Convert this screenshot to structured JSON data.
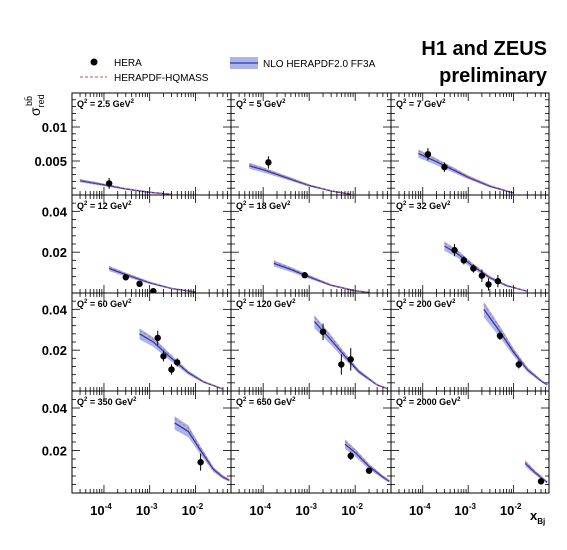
{
  "header": {
    "experiment_line1": "H1 and ZEUS",
    "experiment_line2": "preliminary"
  },
  "legend": {
    "hera": "HERA",
    "hqmass": "HERAPDF-HQMASS",
    "nlo": "NLO HERAPDF2.0 FF3A"
  },
  "y_title": {
    "main": "σ",
    "sup": "bb̄",
    "sub": "red"
  },
  "x_title": {
    "main": "x",
    "sub": "Bj"
  },
  "colors": {
    "data": "#000000",
    "band_fill": "#aab4e6",
    "band_line": "#3535b5",
    "hqmass": "#c87878"
  },
  "chart_data": {
    "type": "scatter",
    "x_scale": "log",
    "xlim": [
      2e-05,
      0.06
    ],
    "x_tick_labels": [
      "10",
      "10",
      "10"
    ],
    "x_tick_exps": [
      "-4",
      "-3",
      "-2"
    ],
    "x_tick_values": [
      0.0001,
      0.001,
      0.01
    ],
    "rows": [
      {
        "ylim": [
          0,
          0.015
        ],
        "y_ticks": [
          0.005,
          0.01
        ],
        "y_tick_labels": [
          "0.005",
          "0.01"
        ]
      },
      {
        "ylim": [
          0,
          0.048
        ],
        "y_ticks": [
          0.02,
          0.04
        ],
        "y_tick_labels": [
          "0.02",
          "0.04"
        ]
      },
      {
        "ylim": [
          0,
          0.048
        ],
        "y_ticks": [
          0.02,
          0.04
        ],
        "y_tick_labels": [
          "0.02",
          "0.04"
        ]
      },
      {
        "ylim": [
          0,
          0.048
        ],
        "y_ticks": [
          0.02,
          0.04
        ],
        "y_tick_labels": [
          "0.02",
          "0.04"
        ]
      }
    ],
    "panels": [
      {
        "q2": "2.5",
        "row": 0,
        "col": 0,
        "points": [
          {
            "x": 0.00013,
            "y": 0.0017,
            "err": 0.0008
          }
        ],
        "curve": [
          [
            3e-05,
            0.0021
          ],
          [
            0.0001,
            0.0015
          ],
          [
            0.0003,
            0.0009
          ],
          [
            0.001,
            0.0004
          ],
          [
            0.003,
            0.0001
          ]
        ]
      },
      {
        "q2": "5",
        "row": 0,
        "col": 1,
        "points": [
          {
            "x": 0.00013,
            "y": 0.0048,
            "err": 0.0009
          }
        ],
        "curve": [
          [
            5e-05,
            0.0043
          ],
          [
            0.0001,
            0.0037
          ],
          [
            0.0003,
            0.0026
          ],
          [
            0.001,
            0.0014
          ],
          [
            0.003,
            0.0006
          ],
          [
            0.008,
            0.0001
          ]
        ]
      },
      {
        "q2": "7",
        "row": 0,
        "col": 2,
        "points": [
          {
            "x": 0.00013,
            "y": 0.006,
            "err": 0.0009
          },
          {
            "x": 0.0003,
            "y": 0.0041,
            "err": 0.0007
          }
        ],
        "curve": [
          [
            8e-05,
            0.0061
          ],
          [
            0.0002,
            0.0049
          ],
          [
            0.0005,
            0.0036
          ],
          [
            0.001,
            0.0026
          ],
          [
            0.003,
            0.0013
          ],
          [
            0.01,
            0.0003
          ]
        ]
      },
      {
        "q2": "12",
        "row": 1,
        "col": 0,
        "points": [
          {
            "x": 0.0003,
            "y": 0.0077,
            "err": 0.0015
          },
          {
            "x": 0.0006,
            "y": 0.0045,
            "err": 0.0013
          },
          {
            "x": 0.0012,
            "y": 0.0009,
            "err": 0.0012
          }
        ],
        "curve": [
          [
            0.00013,
            0.012
          ],
          [
            0.0003,
            0.009
          ],
          [
            0.001,
            0.005
          ],
          [
            0.003,
            0.0022
          ],
          [
            0.01,
            0.0005
          ]
        ]
      },
      {
        "q2": "18",
        "row": 1,
        "col": 1,
        "points": [
          {
            "x": 0.0008,
            "y": 0.0087,
            "err": 0.0013
          }
        ],
        "curve": [
          [
            0.00017,
            0.0145
          ],
          [
            0.0004,
            0.0115
          ],
          [
            0.001,
            0.0079
          ],
          [
            0.003,
            0.0038
          ],
          [
            0.01,
            0.0011
          ],
          [
            0.02,
            0.0003
          ]
        ]
      },
      {
        "q2": "32",
        "row": 1,
        "col": 2,
        "points": [
          {
            "x": 0.0005,
            "y": 0.021,
            "err": 0.003
          },
          {
            "x": 0.0008,
            "y": 0.016,
            "err": 0.002
          },
          {
            "x": 0.0013,
            "y": 0.012,
            "err": 0.002
          },
          {
            "x": 0.002,
            "y": 0.0085,
            "err": 0.003
          },
          {
            "x": 0.0028,
            "y": 0.0042,
            "err": 0.003
          },
          {
            "x": 0.0045,
            "y": 0.0058,
            "err": 0.003
          }
        ],
        "curve": [
          [
            0.0003,
            0.023
          ],
          [
            0.0006,
            0.019
          ],
          [
            0.0012,
            0.0135
          ],
          [
            0.003,
            0.0075
          ],
          [
            0.007,
            0.0036
          ],
          [
            0.02,
            0.0008
          ]
        ]
      },
      {
        "q2": "60",
        "row": 2,
        "col": 0,
        "points": [
          {
            "x": 0.0015,
            "y": 0.026,
            "err": 0.0035
          },
          {
            "x": 0.002,
            "y": 0.017,
            "err": 0.0025
          },
          {
            "x": 0.003,
            "y": 0.0105,
            "err": 0.0025
          },
          {
            "x": 0.004,
            "y": 0.014,
            "err": 0.002
          }
        ],
        "curve": [
          [
            0.0006,
            0.028
          ],
          [
            0.0012,
            0.024
          ],
          [
            0.003,
            0.016
          ],
          [
            0.007,
            0.009
          ],
          [
            0.015,
            0.0045
          ],
          [
            0.04,
            0.001
          ]
        ]
      },
      {
        "q2": "120",
        "row": 2,
        "col": 1,
        "points": [
          {
            "x": 0.002,
            "y": 0.029,
            "err": 0.004
          },
          {
            "x": 0.005,
            "y": 0.013,
            "err": 0.005
          },
          {
            "x": 0.008,
            "y": 0.0155,
            "err": 0.0055
          }
        ],
        "curve": [
          [
            0.0013,
            0.034
          ],
          [
            0.003,
            0.025
          ],
          [
            0.006,
            0.017
          ],
          [
            0.012,
            0.0095
          ],
          [
            0.03,
            0.003
          ],
          [
            0.05,
            0.0012
          ]
        ]
      },
      {
        "q2": "200",
        "row": 2,
        "col": 2,
        "points": [
          {
            "x": 0.005,
            "y": 0.027,
            "err": 0.002
          },
          {
            "x": 0.013,
            "y": 0.013,
            "err": 0.002
          }
        ],
        "curve": [
          [
            0.0022,
            0.04
          ],
          [
            0.005,
            0.029
          ],
          [
            0.01,
            0.019
          ],
          [
            0.02,
            0.0105
          ],
          [
            0.04,
            0.005
          ],
          [
            0.055,
            0.003
          ]
        ]
      },
      {
        "q2": "350",
        "row": 3,
        "col": 0,
        "points": [
          {
            "x": 0.013,
            "y": 0.0145,
            "err": 0.004
          }
        ],
        "curve": [
          [
            0.0035,
            0.033
          ],
          [
            0.007,
            0.029
          ],
          [
            0.013,
            0.02
          ],
          [
            0.025,
            0.011
          ],
          [
            0.04,
            0.0075
          ],
          [
            0.055,
            0.006
          ]
        ]
      },
      {
        "q2": "650",
        "row": 3,
        "col": 1,
        "points": [
          {
            "x": 0.008,
            "y": 0.0175,
            "err": 0.002
          },
          {
            "x": 0.02,
            "y": 0.0105,
            "err": 0.001
          }
        ],
        "curve": [
          [
            0.006,
            0.023
          ],
          [
            0.01,
            0.019
          ],
          [
            0.02,
            0.0125
          ],
          [
            0.04,
            0.0075
          ],
          [
            0.055,
            0.0055
          ]
        ]
      },
      {
        "q2": "2000",
        "row": 3,
        "col": 2,
        "points": [
          {
            "x": 0.04,
            "y": 0.0055,
            "err": 0.0015
          }
        ],
        "curve": [
          [
            0.018,
            0.014
          ],
          [
            0.03,
            0.0095
          ],
          [
            0.045,
            0.0065
          ],
          [
            0.055,
            0.005
          ]
        ]
      }
    ]
  }
}
